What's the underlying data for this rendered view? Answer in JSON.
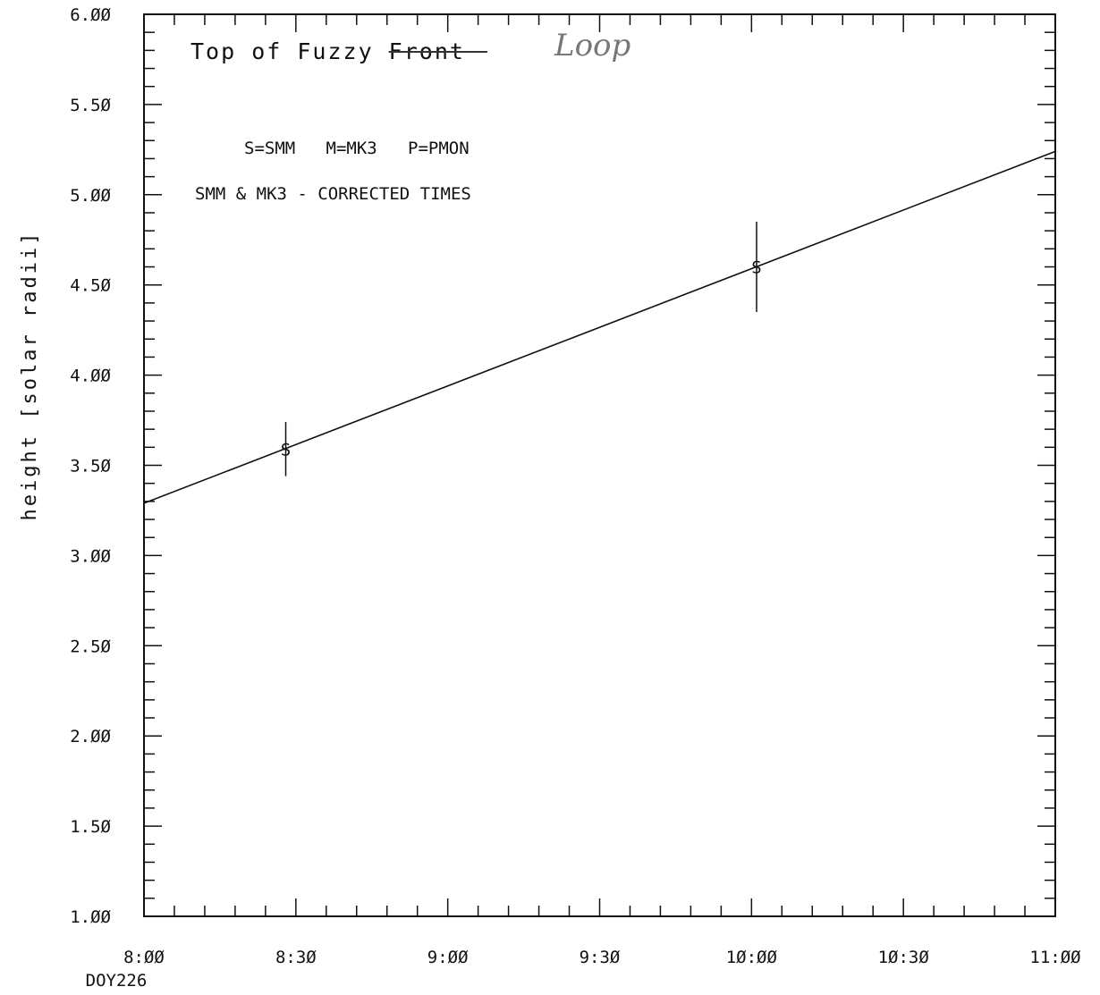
{
  "chart_data": {
    "type": "scatter",
    "title": "Top of Fuzzy Front",
    "title_correction": "Loop",
    "legend_text": "S=SMM   M=MK3   P=PMON",
    "note": "SMM & MK3 - CORRECTED TIMES",
    "ylabel": "height [solar radii]",
    "xlabel": "",
    "x_sublabel": "DOY226",
    "x_ticks": [
      "8:00",
      "8:30",
      "9:00",
      "9:30",
      "10:00",
      "10:30",
      "11:00"
    ],
    "y_ticks": [
      "1.00",
      "1.50",
      "2.00",
      "2.50",
      "3.00",
      "3.50",
      "4.00",
      "4.50",
      "5.00",
      "5.50",
      "6.00"
    ],
    "xlim": [
      "8:00",
      "11:00"
    ],
    "ylim": [
      1.0,
      6.0
    ],
    "grid": false,
    "series": [
      {
        "marker": "S",
        "points": [
          {
            "x": "8:28",
            "y": 3.59,
            "err": 0.15
          },
          {
            "x": "10:01",
            "y": 4.6,
            "err": 0.25
          }
        ]
      }
    ],
    "fit_line": {
      "x": [
        "8:00",
        "11:00"
      ],
      "y": [
        3.29,
        5.24
      ]
    }
  }
}
